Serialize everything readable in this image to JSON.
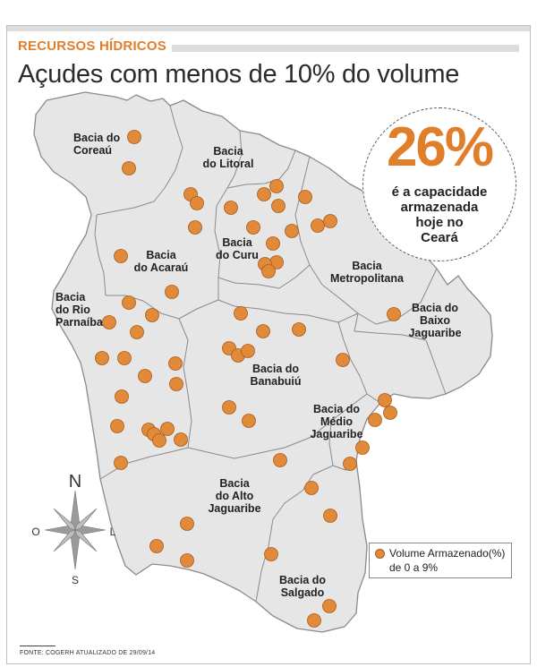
{
  "header": {
    "section": "RECURSOS HÍDRICOS",
    "title": "Açudes com menos de 10% do volume"
  },
  "stat": {
    "value": "26%",
    "caption_lines": [
      "é a capacidade",
      "armazenada",
      "hoje no",
      "Ceará"
    ]
  },
  "regions": [
    {
      "name": "coreau",
      "lines": [
        "Bacia do",
        "Coreaú"
      ]
    },
    {
      "name": "litoral",
      "lines": [
        "Bacia",
        "do Litoral"
      ]
    },
    {
      "name": "acarau",
      "lines": [
        "Bacia",
        "do Acaraú"
      ]
    },
    {
      "name": "curu",
      "lines": [
        "Bacia",
        "do Curu"
      ]
    },
    {
      "name": "metropolitana",
      "lines": [
        "Bacia",
        "Metropolitana"
      ]
    },
    {
      "name": "parnaiba",
      "lines": [
        "Bacia",
        "do Rio",
        "Parnaíba"
      ]
    },
    {
      "name": "baixo-jaguaribe",
      "lines": [
        "Bacia do",
        "Baixo",
        "Jaguaribe"
      ]
    },
    {
      "name": "banabuiu",
      "lines": [
        "Bacia do",
        "Banabuiú"
      ]
    },
    {
      "name": "medio-jaguaribe",
      "lines": [
        "Bacia do",
        "Médio",
        "Jaguaribe"
      ]
    },
    {
      "name": "alto-jaguaribe",
      "lines": [
        "Bacia",
        "do Alto",
        "Jaguaribe"
      ]
    },
    {
      "name": "salgado",
      "lines": [
        "Bacia do",
        "Salgado"
      ]
    }
  ],
  "compass": {
    "north": "N",
    "south": "S",
    "east": "L",
    "west": "O"
  },
  "legend": {
    "line1": "Volume Armazenado(%)",
    "line2": "de 0 a 9%",
    "dot_color": "#e08a3a"
  },
  "colors": {
    "accent": "#e07e2a",
    "land": "#e6e6e6",
    "border": "#8a8a8a",
    "dot": "#e08a3a",
    "dot_stroke": "#a85a1a"
  },
  "source": "FONTE: COGERH ATUALIZADO DE 29/09/14",
  "reservoir_count": 71
}
